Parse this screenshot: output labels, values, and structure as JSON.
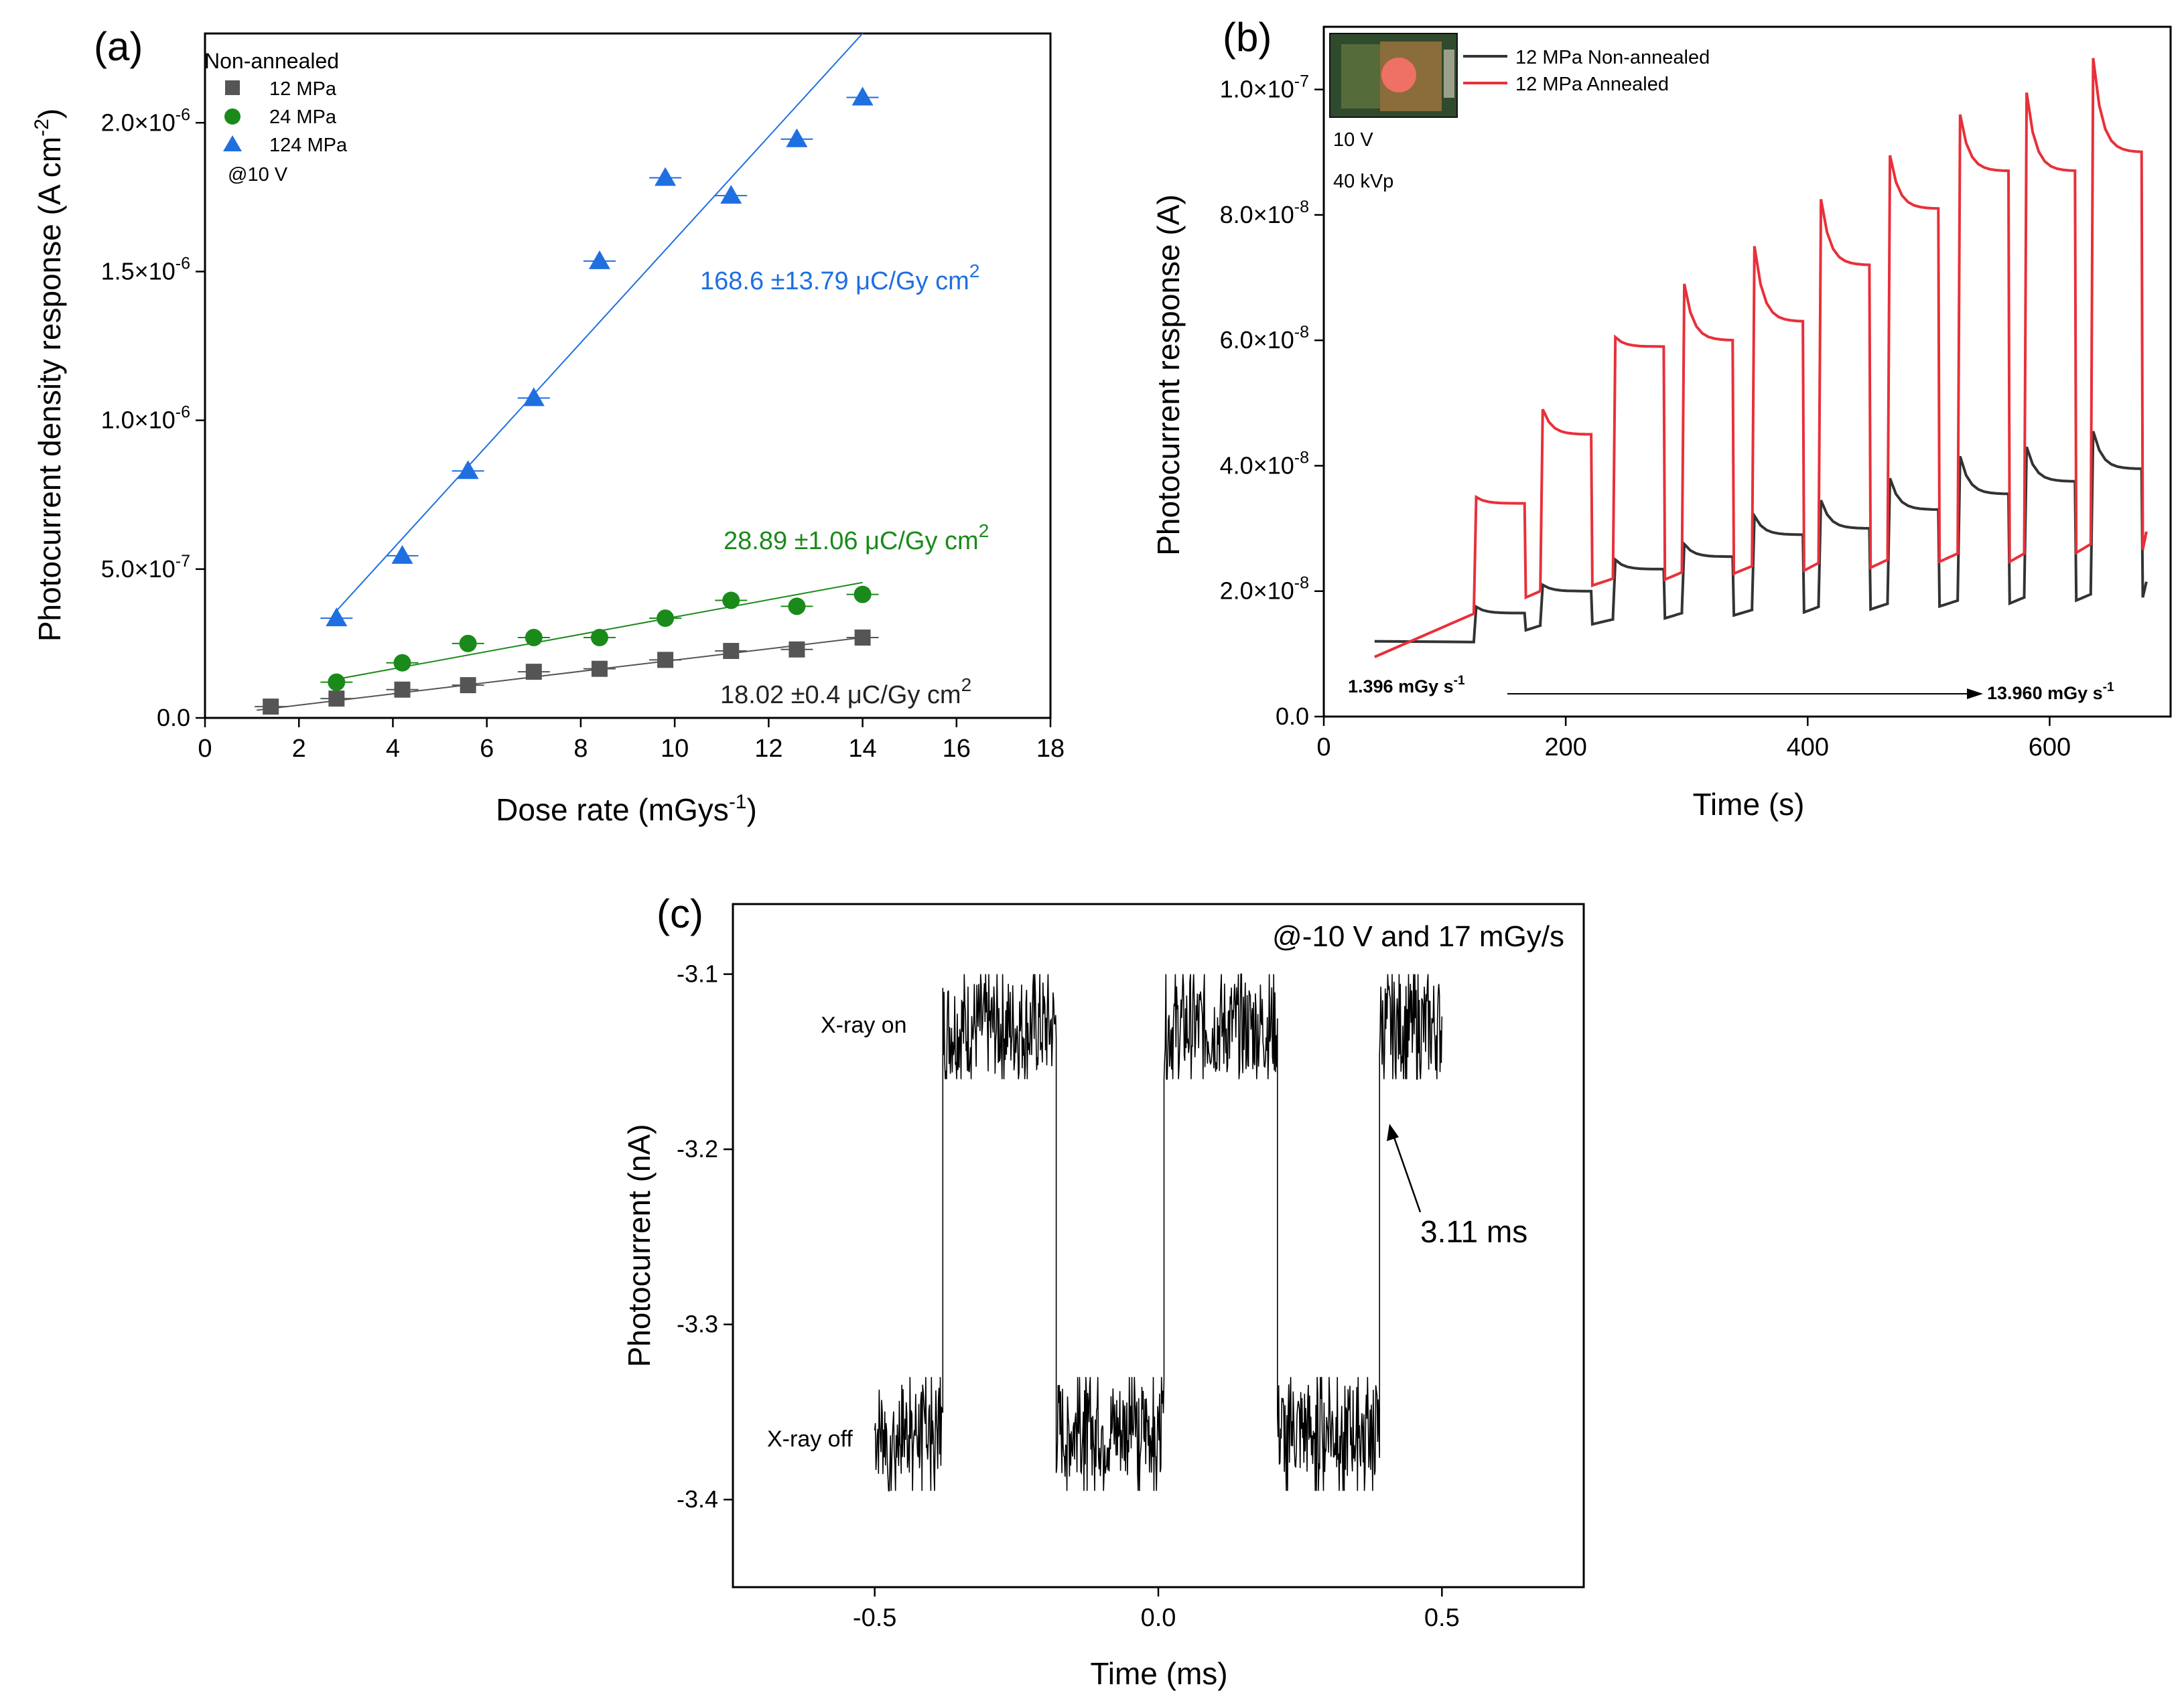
{
  "chart_data": [
    {
      "type": "scatter",
      "panel_label": "(a)",
      "xlabel": "Dose rate (mGys",
      "xlabel_sup": "-1",
      "xlabel_end": ")",
      "ylabel": "Photocurrent density response (A cm",
      "ylabel_sup": "-2",
      "ylabel_end": ")",
      "xlim": [
        0,
        18
      ],
      "ylim": [
        0,
        2.3e-06
      ],
      "xticks": [
        "0",
        "2",
        "4",
        "6",
        "8",
        "10",
        "12",
        "14",
        "16",
        "18"
      ],
      "xtick_values": [
        0,
        2,
        4,
        6,
        8,
        10,
        12,
        14,
        16,
        18
      ],
      "yticks": [
        {
          "value": 0,
          "label": "0.0"
        },
        {
          "value": 5e-07,
          "label": "5.0×10",
          "exp": "-7"
        },
        {
          "value": 1e-06,
          "label": "1.0×10",
          "exp": "-6"
        },
        {
          "value": 1.5e-06,
          "label": "1.5×10",
          "exp": "-6"
        },
        {
          "value": 2e-06,
          "label": "2.0×10",
          "exp": "-6"
        }
      ],
      "legend_title": "Non-annealed",
      "legend_note": "@10 V",
      "legend_position": "top-left",
      "series": [
        {
          "name": "12 MPa",
          "marker": "square",
          "color": "#555555",
          "x": [
            1.4,
            2.8,
            4.2,
            5.6,
            7.0,
            8.4,
            9.8,
            11.2,
            12.6,
            14.0
          ],
          "y": [
            3.8e-08,
            6.5e-08,
            9.5e-08,
            1.1e-07,
            1.55e-07,
            1.65e-07,
            1.95e-07,
            2.25e-07,
            2.3e-07,
            2.7e-07
          ],
          "fit": {
            "x": [
              1.1,
              14.0
            ],
            "y": [
              2.6e-08,
              2.7e-07
            ]
          },
          "annotation": "18.02 ±0.4 μC/Gy cm",
          "annotation_sup": "2"
        },
        {
          "name": "24 MPa",
          "marker": "circle",
          "color": "#1a8a1a",
          "x": [
            2.8,
            4.2,
            5.6,
            7.0,
            8.4,
            9.8,
            11.2,
            12.6,
            14.0
          ],
          "y": [
            1.2e-07,
            1.85e-07,
            2.5e-07,
            2.7e-07,
            2.7e-07,
            3.35e-07,
            3.95e-07,
            3.75e-07,
            4.15e-07
          ],
          "fit": {
            "x": [
              2.8,
              14.0
            ],
            "y": [
              1.3e-07,
              4.55e-07
            ]
          },
          "annotation": "28.89 ±1.06 μC/Gy cm",
          "annotation_sup": "2"
        },
        {
          "name": "124 MPa",
          "marker": "triangle",
          "color": "#1f6fe0",
          "x": [
            2.8,
            4.2,
            5.6,
            7.0,
            8.4,
            9.8,
            11.2,
            12.6,
            14.0
          ],
          "y": [
            3.35e-07,
            5.45e-07,
            8.3e-07,
            1.075e-06,
            1.535e-06,
            1.815e-06,
            1.755e-06,
            1.945e-06,
            2.085e-06
          ],
          "fit": {
            "x": [
              2.8,
              14.0
            ],
            "y": [
              3.6e-07,
              2.3e-06
            ]
          },
          "annotation": "168.6 ±13.79 μC/Gy cm",
          "annotation_sup": "2"
        }
      ]
    },
    {
      "type": "line",
      "panel_label": "(b)",
      "xlabel": "Time (s)",
      "ylabel": "Photocurrent response (A)",
      "xlim": [
        0,
        700
      ],
      "ylim": [
        0,
        1.1e-07
      ],
      "xticks": [
        "0",
        "200",
        "400",
        "600"
      ],
      "xtick_values": [
        0,
        200,
        400,
        600
      ],
      "yticks": [
        {
          "value": 0,
          "label": "0.0"
        },
        {
          "value": 2e-08,
          "label": "2.0×10",
          "exp": "-8"
        },
        {
          "value": 4e-08,
          "label": "4.0×10",
          "exp": "-8"
        },
        {
          "value": 6e-08,
          "label": "6.0×10",
          "exp": "-8"
        },
        {
          "value": 8e-08,
          "label": "8.0×10",
          "exp": "-8"
        },
        {
          "value": 1e-07,
          "label": "1.0×10",
          "exp": "-7"
        }
      ],
      "legend_position": "top-left",
      "notes": [
        "10 V",
        "40 kVp"
      ],
      "dose_start": "1.396 mGy s",
      "dose_start_sup": "-1",
      "dose_end": "13.960 mGy s",
      "dose_end_sup": "-1",
      "pulses": {
        "start_times": [
          125,
          180,
          240,
          297,
          355,
          410,
          467,
          525,
          580,
          635
        ],
        "duration": 42,
        "annealed_peak": [
          3.5e-08,
          4.9e-08,
          6.05e-08,
          6.9e-08,
          7.5e-08,
          8.25e-08,
          8.95e-08,
          9.6e-08,
          9.95e-08,
          1.05e-07
        ],
        "annealed_plateau": [
          3.4e-08,
          4.5e-08,
          5.9e-08,
          6e-08,
          6.3e-08,
          7.2e-08,
          8.1e-08,
          8.7e-08,
          8.7e-08,
          9e-08
        ],
        "annealed_base": [
          2e-08,
          2.2e-08,
          2.3e-08,
          2.4e-08,
          2.45e-08,
          2.5e-08,
          2.6e-08,
          2.6e-08,
          2.75e-08,
          2.8e-08
        ],
        "nonannealed_peak": [
          1.75e-08,
          2.1e-08,
          2.5e-08,
          2.75e-08,
          3.2e-08,
          3.45e-08,
          3.8e-08,
          4.15e-08,
          4.3e-08,
          4.55e-08
        ],
        "nonannealed_plateau": [
          1.65e-08,
          2e-08,
          2.35e-08,
          2.55e-08,
          2.9e-08,
          3e-08,
          3.3e-08,
          3.55e-08,
          3.75e-08,
          3.95e-08
        ],
        "nonannealed_base": [
          1.45e-08,
          1.55e-08,
          1.65e-08,
          1.7e-08,
          1.75e-08,
          1.8e-08,
          1.85e-08,
          1.9e-08,
          1.95e-08,
          2e-08
        ]
      },
      "series": [
        {
          "name": "12 MPa Non-annealed",
          "color": "#333333",
          "start_value": 1.2e-08,
          "end_value": 2.15e-08
        },
        {
          "name": "12 MPa Annealed",
          "color": "#e8303a",
          "start_value": 9.5e-09,
          "end_value": 2.95e-08
        }
      ]
    },
    {
      "type": "line",
      "panel_label": "(c)",
      "xlabel": "Time (ms)",
      "ylabel": "Photocurrent (nA)",
      "xlim": [
        -0.75,
        0.75
      ],
      "ylim": [
        -3.45,
        -3.06
      ],
      "xticks": [
        "-0.5",
        "0.0",
        "0.5"
      ],
      "xtick_values": [
        -0.5,
        0.0,
        0.5
      ],
      "yticks": [
        {
          "value": -3.1,
          "label": "-3.1"
        },
        {
          "value": -3.2,
          "label": "-3.2"
        },
        {
          "value": -3.3,
          "label": "-3.3"
        },
        {
          "value": -3.4,
          "label": "-3.4"
        }
      ],
      "title": "@-10 V and 17 mGy/s",
      "on_label": "X-ray on",
      "off_label": "X-ray off",
      "rise_annotation": "3.11 ms",
      "segments": [
        {
          "state": "off",
          "x0": -0.5,
          "x1": -0.38
        },
        {
          "state": "on",
          "x0": -0.38,
          "x1": -0.18
        },
        {
          "state": "off",
          "x0": -0.18,
          "x1": 0.01
        },
        {
          "state": "on",
          "x0": 0.01,
          "x1": 0.21
        },
        {
          "state": "off",
          "x0": 0.21,
          "x1": 0.39
        },
        {
          "state": "on",
          "x0": 0.39,
          "x1": 0.5
        }
      ],
      "on_level": -3.13,
      "off_level": -3.36,
      "series": [
        {
          "name": "Photocurrent",
          "color": "#000000"
        }
      ]
    }
  ]
}
